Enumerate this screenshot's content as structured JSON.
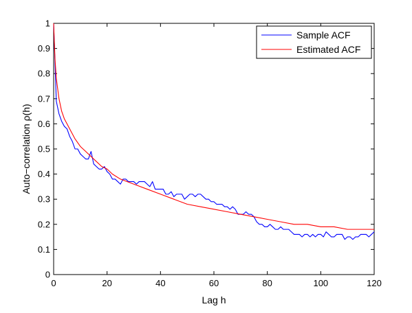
{
  "chart_data": {
    "type": "line",
    "title": "",
    "xlabel": "Lag h",
    "ylabel": "Auto−correlation ρ(h)",
    "xlim": [
      0,
      120
    ],
    "ylim": [
      0,
      1
    ],
    "xticks": [
      0,
      20,
      40,
      60,
      80,
      100,
      120
    ],
    "yticks": [
      0,
      0.1,
      0.2,
      0.3,
      0.4,
      0.5,
      0.6,
      0.7,
      0.8,
      0.9,
      1
    ],
    "xtick_labels": [
      "0",
      "20",
      "40",
      "60",
      "80",
      "100",
      "120"
    ],
    "ytick_labels": [
      "0",
      "0.1",
      "0.2",
      "0.3",
      "0.4",
      "0.5",
      "0.6",
      "0.7",
      "0.8",
      "0.9",
      "1"
    ],
    "grid": false,
    "legend_position": "top-right",
    "series": [
      {
        "name": "Sample ACF",
        "color": "#0000ff",
        "x": [
          0,
          1,
          2,
          3,
          4,
          5,
          6,
          7,
          8,
          9,
          10,
          11,
          12,
          13,
          14,
          15,
          16,
          17,
          18,
          19,
          20,
          21,
          22,
          23,
          24,
          25,
          26,
          27,
          28,
          29,
          30,
          31,
          32,
          33,
          34,
          35,
          36,
          37,
          38,
          39,
          40,
          41,
          42,
          43,
          44,
          45,
          46,
          47,
          48,
          49,
          50,
          51,
          52,
          53,
          54,
          55,
          56,
          57,
          58,
          59,
          60,
          61,
          62,
          63,
          64,
          65,
          66,
          67,
          68,
          69,
          70,
          71,
          72,
          73,
          74,
          75,
          76,
          77,
          78,
          79,
          80,
          81,
          82,
          83,
          84,
          85,
          86,
          87,
          88,
          89,
          90,
          91,
          92,
          93,
          94,
          95,
          96,
          97,
          98,
          99,
          100,
          101,
          102,
          103,
          104,
          105,
          106,
          107,
          108,
          109,
          110,
          111,
          112,
          113,
          114,
          115,
          116,
          117,
          118,
          119,
          120
        ],
        "values": [
          1.0,
          0.69,
          0.64,
          0.61,
          0.59,
          0.58,
          0.55,
          0.53,
          0.5,
          0.5,
          0.48,
          0.47,
          0.46,
          0.46,
          0.49,
          0.44,
          0.43,
          0.42,
          0.42,
          0.43,
          0.41,
          0.4,
          0.38,
          0.38,
          0.37,
          0.36,
          0.38,
          0.38,
          0.37,
          0.37,
          0.37,
          0.36,
          0.37,
          0.37,
          0.37,
          0.36,
          0.35,
          0.37,
          0.34,
          0.34,
          0.34,
          0.34,
          0.32,
          0.32,
          0.33,
          0.31,
          0.32,
          0.32,
          0.32,
          0.3,
          0.31,
          0.32,
          0.32,
          0.31,
          0.32,
          0.32,
          0.31,
          0.3,
          0.3,
          0.29,
          0.29,
          0.28,
          0.28,
          0.28,
          0.27,
          0.27,
          0.26,
          0.27,
          0.26,
          0.24,
          0.24,
          0.24,
          0.25,
          0.24,
          0.24,
          0.23,
          0.21,
          0.2,
          0.2,
          0.19,
          0.19,
          0.2,
          0.19,
          0.18,
          0.18,
          0.19,
          0.18,
          0.18,
          0.18,
          0.17,
          0.16,
          0.16,
          0.16,
          0.15,
          0.16,
          0.16,
          0.15,
          0.16,
          0.15,
          0.16,
          0.16,
          0.15,
          0.17,
          0.16,
          0.15,
          0.15,
          0.16,
          0.16,
          0.16,
          0.14,
          0.15,
          0.15,
          0.14,
          0.15,
          0.15,
          0.16,
          0.16,
          0.16,
          0.15,
          0.16,
          0.17
        ]
      },
      {
        "name": "Estimated ACF",
        "color": "#ff0000",
        "x": [
          0,
          0.5,
          1,
          2,
          3,
          4,
          5,
          6,
          7,
          8,
          10,
          12,
          14,
          16,
          18,
          20,
          22,
          25,
          30,
          35,
          40,
          45,
          50,
          55,
          60,
          65,
          70,
          75,
          80,
          85,
          90,
          95,
          100,
          105,
          110,
          115,
          120
        ],
        "values": [
          1.0,
          0.86,
          0.78,
          0.7,
          0.65,
          0.62,
          0.6,
          0.58,
          0.56,
          0.54,
          0.51,
          0.49,
          0.47,
          0.45,
          0.43,
          0.42,
          0.4,
          0.38,
          0.36,
          0.34,
          0.32,
          0.3,
          0.28,
          0.27,
          0.26,
          0.25,
          0.24,
          0.23,
          0.22,
          0.21,
          0.2,
          0.2,
          0.19,
          0.19,
          0.18,
          0.18,
          0.18
        ]
      }
    ]
  }
}
